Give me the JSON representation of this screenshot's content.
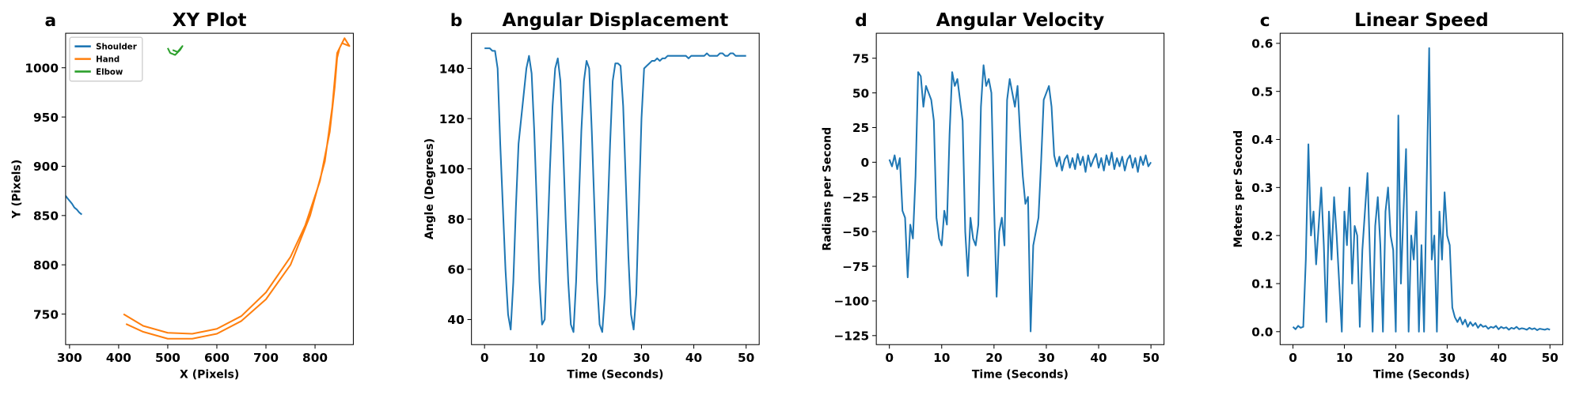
{
  "chart_data": [
    {
      "type": "line",
      "panel_label": "a",
      "title": "XY Plot",
      "xlabel": "X (Pixels)",
      "ylabel": "Y (Pixels)",
      "xlim": [
        292,
        878
      ],
      "ylim": [
        719,
        1035
      ],
      "xticks": [
        300,
        400,
        500,
        600,
        700,
        800
      ],
      "yticks": [
        750,
        800,
        850,
        900,
        950,
        1000
      ],
      "legend": "upper left",
      "series": [
        {
          "name": "Shoulder",
          "color": "#1f77b4",
          "x": [
            292,
            295,
            300,
            305,
            310,
            315,
            320,
            325
          ],
          "values": [
            870,
            868,
            865,
            862,
            858,
            856,
            853,
            851
          ]
        },
        {
          "name": "Hand",
          "color": "#ff7f0e",
          "x": [
            410,
            450,
            500,
            550,
            600,
            650,
            700,
            750,
            780,
            810,
            830,
            840,
            845,
            850,
            855,
            870,
            860,
            845,
            835,
            820,
            790,
            750,
            700,
            650,
            600,
            550,
            500,
            450,
            415
          ],
          "values": [
            750,
            738,
            731,
            730,
            735,
            748,
            772,
            808,
            840,
            885,
            935,
            980,
            1010,
            1020,
            1025,
            1022,
            1030,
            1015,
            960,
            905,
            850,
            800,
            765,
            743,
            730,
            725,
            725,
            732,
            740
          ]
        },
        {
          "name": "Elbow",
          "color": "#2ca02c",
          "x": [
            500,
            505,
            515,
            525,
            530,
            520,
            510
          ],
          "values": [
            1020,
            1015,
            1013,
            1018,
            1022,
            1016,
            1018
          ]
        }
      ]
    },
    {
      "type": "line",
      "panel_label": "b",
      "title": "Angular Displacement",
      "xlabel": "Time (Seconds)",
      "ylabel": "Angle (Degrees)",
      "color": "#1f77b4",
      "xlim": [
        -2.5,
        52.5
      ],
      "ylim": [
        30,
        154
      ],
      "xticks": [
        0,
        10,
        20,
        30,
        40,
        50
      ],
      "yticks": [
        40,
        60,
        80,
        100,
        120,
        140
      ],
      "x": [
        0,
        0.5,
        1,
        1.5,
        2,
        2.5,
        3,
        3.5,
        4,
        4.5,
        5,
        5.5,
        6,
        6.5,
        7,
        7.5,
        8,
        8.5,
        9,
        9.5,
        10,
        10.5,
        11,
        11.5,
        12,
        12.5,
        13,
        13.5,
        14,
        14.5,
        15,
        15.5,
        16,
        16.5,
        17,
        17.5,
        18,
        18.5,
        19,
        19.5,
        20,
        20.5,
        21,
        21.5,
        22,
        22.5,
        23,
        23.5,
        24,
        24.5,
        25,
        25.5,
        26,
        26.5,
        27,
        27.5,
        28,
        28.5,
        29,
        29.5,
        30,
        30.5,
        31,
        31.5,
        32,
        32.5,
        33,
        33.5,
        34,
        34.5,
        35,
        35.5,
        36,
        36.5,
        37,
        37.5,
        38,
        38.5,
        39,
        39.5,
        40,
        40.5,
        41,
        41.5,
        42,
        42.5,
        43,
        43.5,
        44,
        44.5,
        45,
        45.5,
        46,
        46.5,
        47,
        47.5,
        48,
        48.5,
        49,
        49.5,
        50
      ],
      "values": [
        148,
        148,
        148,
        147,
        147,
        140,
        110,
        85,
        60,
        42,
        36,
        55,
        85,
        110,
        120,
        130,
        140,
        145,
        138,
        115,
        85,
        55,
        38,
        40,
        70,
        100,
        125,
        140,
        144,
        135,
        110,
        80,
        55,
        38,
        35,
        55,
        85,
        115,
        135,
        143,
        140,
        115,
        85,
        55,
        38,
        35,
        50,
        80,
        110,
        135,
        142,
        142,
        141,
        125,
        95,
        65,
        42,
        36,
        50,
        85,
        120,
        140,
        141,
        142,
        143,
        143,
        144,
        143,
        144,
        144,
        145,
        145,
        145,
        145,
        145,
        145,
        145,
        145,
        144,
        145,
        145,
        145,
        145,
        145,
        145,
        146,
        145,
        145,
        145,
        145,
        146,
        146,
        145,
        145,
        146,
        146,
        145,
        145,
        145,
        145,
        145
      ]
    },
    {
      "type": "line",
      "panel_label": "d",
      "title": "Angular Velocity",
      "xlabel": "Time (Seconds)",
      "ylabel": "Radians per Second",
      "color": "#1f77b4",
      "xlim": [
        -2.5,
        52.5
      ],
      "ylim": [
        -131.5,
        93
      ],
      "xticks": [
        0,
        10,
        20,
        30,
        40,
        50
      ],
      "yticks": [
        {
          "value": -125,
          "label": "−125"
        },
        {
          "value": -100,
          "label": "−100"
        },
        {
          "value": -75,
          "label": "−75"
        },
        {
          "value": -50,
          "label": "−50"
        },
        {
          "value": -25,
          "label": "−25"
        },
        0,
        25,
        50,
        75
      ],
      "x": [
        0,
        0.5,
        1,
        1.5,
        2,
        2.5,
        3,
        3.5,
        4,
        4.5,
        5,
        5.5,
        6,
        6.5,
        7,
        7.5,
        8,
        8.5,
        9,
        9.5,
        10,
        10.5,
        11,
        11.5,
        12,
        12.5,
        13,
        13.5,
        14,
        14.5,
        15,
        15.5,
        16,
        16.5,
        17,
        17.5,
        18,
        18.5,
        19,
        19.5,
        20,
        20.5,
        21,
        21.5,
        22,
        22.5,
        23,
        23.5,
        24,
        24.5,
        25,
        25.5,
        26,
        26.5,
        27,
        27.5,
        28,
        28.5,
        29,
        29.5,
        30,
        30.5,
        31,
        31.5,
        32,
        32.5,
        33,
        33.5,
        34,
        34.5,
        35,
        35.5,
        36,
        36.5,
        37,
        37.5,
        38,
        38.5,
        39,
        39.5,
        40,
        40.5,
        41,
        41.5,
        42,
        42.5,
        43,
        43.5,
        44,
        44.5,
        45,
        45.5,
        46,
        46.5,
        47,
        47.5,
        48,
        48.5,
        49,
        49.5,
        50
      ],
      "values": [
        2,
        -3,
        5,
        -5,
        3,
        -35,
        -40,
        -83,
        -45,
        -55,
        -10,
        65,
        62,
        40,
        55,
        50,
        45,
        30,
        -40,
        -55,
        -60,
        -35,
        -45,
        20,
        65,
        55,
        60,
        45,
        30,
        -50,
        -82,
        -40,
        -55,
        -60,
        -45,
        40,
        70,
        55,
        60,
        50,
        -30,
        -97,
        -50,
        -40,
        -60,
        45,
        60,
        50,
        40,
        55,
        20,
        -10,
        -30,
        -25,
        -122,
        -60,
        -50,
        -40,
        0,
        45,
        50,
        55,
        40,
        5,
        -3,
        4,
        -6,
        2,
        5,
        -4,
        3,
        -5,
        6,
        -2,
        4,
        -7,
        5,
        -3,
        2,
        6,
        -4,
        3,
        -6,
        5,
        -2,
        7,
        -5,
        3,
        -3,
        4,
        -6,
        2,
        5,
        -4,
        3,
        -7,
        4,
        -2,
        5,
        -3,
        0
      ]
    },
    {
      "type": "line",
      "panel_label": "c",
      "title": "Linear Speed",
      "xlabel": "Time (Seconds)",
      "ylabel": "Meters per Second",
      "color": "#1f77b4",
      "xlim": [
        -2.5,
        52.5
      ],
      "ylim": [
        -0.027,
        0.621
      ],
      "xticks": [
        0,
        10,
        20,
        30,
        40,
        50
      ],
      "yticks": [
        {
          "value": 0,
          "label": "0.0"
        },
        0.1,
        0.2,
        0.3,
        0.4,
        0.5,
        0.6
      ],
      "x": [
        0,
        0.5,
        1,
        1.5,
        2,
        2.5,
        3,
        3.5,
        4,
        4.5,
        5,
        5.5,
        6,
        6.5,
        7,
        7.5,
        8,
        8.5,
        9,
        9.5,
        10,
        10.5,
        11,
        11.5,
        12,
        12.5,
        13,
        13.5,
        14,
        14.5,
        15,
        15.5,
        16,
        16.5,
        17,
        17.5,
        18,
        18.5,
        19,
        19.5,
        20,
        20.5,
        21,
        21.5,
        22,
        22.5,
        23,
        23.5,
        24,
        24.5,
        25,
        25.5,
        26,
        26.5,
        27,
        27.5,
        28,
        28.5,
        29,
        29.5,
        30,
        30.5,
        31,
        31.5,
        32,
        32.5,
        33,
        33.5,
        34,
        34.5,
        35,
        35.5,
        36,
        36.5,
        37,
        37.5,
        38,
        38.5,
        39,
        39.5,
        40,
        40.5,
        41,
        41.5,
        42,
        42.5,
        43,
        43.5,
        44,
        44.5,
        45,
        45.5,
        46,
        46.5,
        47,
        47.5,
        48,
        48.5,
        49,
        49.5,
        50
      ],
      "values": [
        0.01,
        0.005,
        0.012,
        0.008,
        0.01,
        0.15,
        0.39,
        0.2,
        0.25,
        0.14,
        0.22,
        0.3,
        0.18,
        0.02,
        0.25,
        0.15,
        0.28,
        0.2,
        0.1,
        0.0,
        0.25,
        0.18,
        0.3,
        0.1,
        0.22,
        0.2,
        0.01,
        0.17,
        0.25,
        0.33,
        0.15,
        0.0,
        0.22,
        0.28,
        0.18,
        0.0,
        0.25,
        0.3,
        0.2,
        0.17,
        0.0,
        0.45,
        0.1,
        0.25,
        0.38,
        0.0,
        0.2,
        0.15,
        0.25,
        0.0,
        0.18,
        0.0,
        0.3,
        0.59,
        0.15,
        0.2,
        0.0,
        0.25,
        0.15,
        0.29,
        0.2,
        0.18,
        0.05,
        0.03,
        0.02,
        0.03,
        0.015,
        0.025,
        0.01,
        0.02,
        0.012,
        0.018,
        0.008,
        0.015,
        0.01,
        0.012,
        0.006,
        0.01,
        0.008,
        0.012,
        0.005,
        0.01,
        0.007,
        0.009,
        0.004,
        0.008,
        0.006,
        0.01,
        0.005,
        0.007,
        0.006,
        0.004,
        0.008,
        0.005,
        0.007,
        0.003,
        0.006,
        0.005,
        0.004,
        0.006,
        0.004
      ]
    }
  ]
}
